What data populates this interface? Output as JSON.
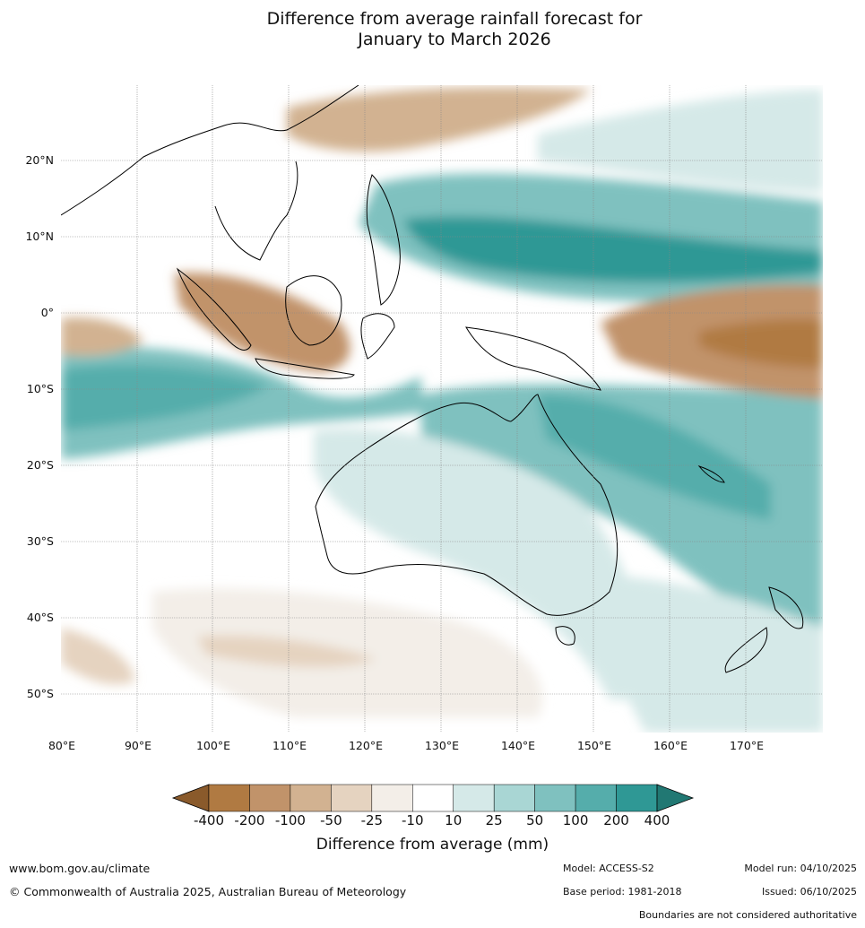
{
  "title_line1": "Difference from average rainfall forecast for",
  "title_line2": "January to March 2026",
  "lon_ticks": [
    "80°E",
    "90°E",
    "100°E",
    "110°E",
    "120°E",
    "130°E",
    "140°E",
    "150°E",
    "160°E",
    "170°E"
  ],
  "lat_ticks": [
    "20°N",
    "10°N",
    "0°",
    "10°S",
    "20°S",
    "30°S",
    "40°S",
    "50°S"
  ],
  "legend": {
    "title": "Difference from average (mm)",
    "labels": [
      "-400",
      "-200",
      "-100",
      "-50",
      "-25",
      "-10",
      "10",
      "25",
      "50",
      "100",
      "200",
      "400"
    ],
    "colors": [
      "#8a5a2b",
      "#b07a42",
      "#c1936a",
      "#d2b291",
      "#e5d3c0",
      "#f3eee8",
      "#ffffff",
      "#d5e9e8",
      "#a9d6d4",
      "#7fc1bf",
      "#55adab",
      "#2f9895",
      "#217873"
    ]
  },
  "footer": {
    "url": "www.bom.gov.au/climate",
    "copyright": "© Commonwealth of Australia 2025, Australian Bureau of Meteorology",
    "model": "Model: ACCESS-S2",
    "base_period": "Base period: 1981-2018",
    "model_run": "Model run: 04/10/2025",
    "issued": "Issued: 06/10/2025",
    "disclaimer": "Boundaries are not considered authoritative"
  }
}
